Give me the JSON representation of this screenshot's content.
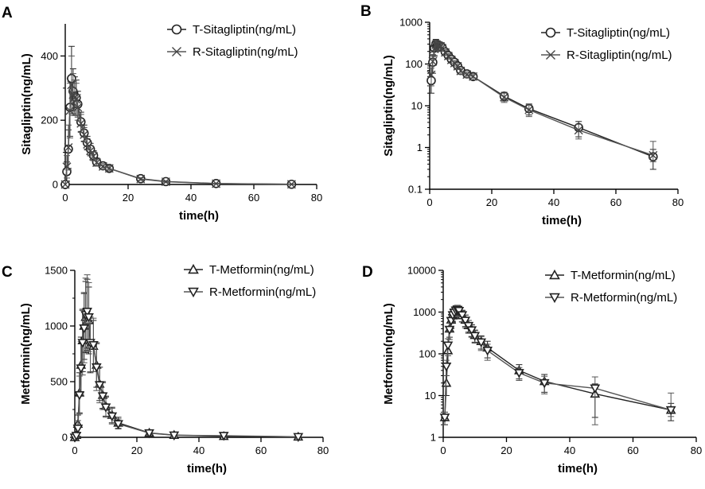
{
  "chart_data": [
    {
      "panel": "A",
      "type": "line",
      "scale": "linear",
      "xlabel": "time(h)",
      "ylabel": "Sitagliptin(ng/mL)",
      "xlim": [
        0,
        80
      ],
      "ylim": [
        0,
        500
      ],
      "xticks": [
        0,
        20,
        40,
        60,
        80
      ],
      "yticks": [
        0,
        200,
        400
      ],
      "ytick_labels": [
        "0",
        "200",
        "400"
      ],
      "legend_position": "top-right",
      "series": [
        {
          "name": "T-Sitagliptin(ng/mL)",
          "marker": "circle",
          "x": [
            0,
            0.5,
            1,
            1.5,
            2,
            2.5,
            3,
            3.5,
            4,
            5,
            6,
            7,
            8,
            9,
            10,
            12,
            14,
            24,
            32,
            48,
            72
          ],
          "y": [
            0,
            40,
            110,
            240,
            330,
            290,
            275,
            270,
            250,
            195,
            160,
            130,
            110,
            90,
            70,
            58,
            50,
            18,
            9,
            3,
            0.6
          ],
          "err": [
            0,
            30,
            60,
            90,
            100,
            70,
            60,
            55,
            40,
            30,
            25,
            20,
            18,
            15,
            12,
            10,
            8,
            4,
            3,
            1,
            0.5
          ]
        },
        {
          "name": "R-Sitagliptin(ng/mL)",
          "marker": "x",
          "x": [
            0,
            0.5,
            1,
            1.5,
            2,
            2.5,
            3,
            3.5,
            4,
            5,
            6,
            7,
            8,
            9,
            10,
            12,
            14,
            24,
            32,
            48,
            72
          ],
          "y": [
            0,
            55,
            115,
            230,
            310,
            280,
            270,
            265,
            240,
            190,
            155,
            125,
            105,
            88,
            68,
            56,
            50,
            17,
            8.5,
            2.6,
            0.65
          ],
          "err": [
            0,
            35,
            70,
            85,
            90,
            65,
            55,
            50,
            40,
            28,
            22,
            18,
            16,
            14,
            11,
            9,
            8,
            4,
            3,
            1,
            0.8
          ]
        }
      ]
    },
    {
      "panel": "B",
      "type": "line",
      "scale": "log",
      "xlabel": "time(h)",
      "ylabel": "Sitagliptin(ng/mL)",
      "xlim": [
        0,
        80
      ],
      "ylim": [
        0.1,
        1000
      ],
      "xticks": [
        0,
        20,
        40,
        60,
        80
      ],
      "yticks": [
        0.1,
        1,
        10,
        100,
        1000
      ],
      "ytick_labels": [
        "0.1",
        "1",
        "10",
        "100",
        "1000"
      ],
      "legend_position": "top-right",
      "series": [
        {
          "name": "T-Sitagliptin(ng/mL)",
          "marker": "circle",
          "x": [
            0.5,
            1,
            1.5,
            2,
            2.5,
            3,
            3.5,
            4,
            5,
            6,
            7,
            8,
            9,
            10,
            12,
            14,
            24,
            32,
            48,
            72
          ],
          "y": [
            40,
            110,
            240,
            300,
            290,
            275,
            270,
            250,
            195,
            160,
            130,
            110,
            90,
            70,
            58,
            50,
            17,
            8.5,
            3,
            0.6
          ],
          "err": [
            20,
            50,
            80,
            90,
            70,
            60,
            55,
            45,
            35,
            28,
            22,
            18,
            15,
            12,
            10,
            8,
            4,
            2.5,
            1.2,
            0.3
          ]
        },
        {
          "name": "R-Sitagliptin(ng/mL)",
          "marker": "x",
          "x": [
            0.5,
            1,
            1.5,
            2,
            2.5,
            3,
            3.5,
            4,
            5,
            6,
            7,
            8,
            9,
            10,
            12,
            14,
            24,
            32,
            48,
            72
          ],
          "y": [
            55,
            115,
            230,
            290,
            280,
            270,
            265,
            240,
            190,
            155,
            125,
            105,
            88,
            68,
            56,
            50,
            16,
            8,
            2.6,
            0.65
          ],
          "err": [
            25,
            55,
            80,
            85,
            65,
            55,
            50,
            40,
            30,
            24,
            20,
            16,
            14,
            11,
            9,
            8,
            4,
            2.5,
            1,
            0.75
          ]
        }
      ]
    },
    {
      "panel": "C",
      "type": "line",
      "scale": "linear",
      "xlabel": "time(h)",
      "ylabel": "Metformin(ng/mL)",
      "xlim": [
        0,
        80
      ],
      "ylim": [
        0,
        1500
      ],
      "xticks": [
        0,
        20,
        40,
        60,
        80
      ],
      "yticks": [
        0,
        500,
        1000,
        1500
      ],
      "ytick_labels": [
        "0",
        "500",
        "1000",
        "1500"
      ],
      "legend_position": "top-right",
      "series": [
        {
          "name": "T-Metformin(ng/mL)",
          "marker": "triangle-up",
          "x": [
            0,
            0.5,
            1,
            1.5,
            2,
            2.5,
            3,
            3.5,
            4,
            4.5,
            5,
            6,
            7,
            8,
            9,
            10,
            12,
            14,
            24,
            32,
            48,
            72
          ],
          "y": [
            0,
            20,
            120,
            400,
            650,
            870,
            1000,
            1080,
            1100,
            1050,
            830,
            820,
            650,
            480,
            380,
            280,
            200,
            130,
            40,
            20,
            10,
            4.5
          ],
          "err": [
            0,
            15,
            80,
            180,
            250,
            280,
            300,
            320,
            320,
            300,
            250,
            230,
            200,
            150,
            120,
            90,
            70,
            50,
            15,
            10,
            5,
            3
          ]
        },
        {
          "name": "R-Metformin(ng/mL)",
          "marker": "triangle-down",
          "x": [
            0,
            0.5,
            1,
            1.5,
            2,
            2.5,
            3,
            3.5,
            4,
            4.5,
            5,
            6,
            7,
            8,
            9,
            10,
            12,
            14,
            24,
            32,
            48,
            72
          ],
          "y": [
            0,
            15,
            80,
            380,
            620,
            850,
            980,
            1100,
            1130,
            1080,
            850,
            830,
            630,
            470,
            370,
            270,
            190,
            120,
            38,
            18,
            15,
            4.5
          ],
          "err": [
            0,
            12,
            70,
            170,
            240,
            290,
            310,
            330,
            330,
            310,
            260,
            240,
            210,
            160,
            120,
            90,
            70,
            45,
            15,
            10,
            10,
            7
          ]
        }
      ]
    },
    {
      "panel": "D",
      "type": "line",
      "scale": "log",
      "xlabel": "time(h)",
      "ylabel": "Metformin(ng/mL)",
      "xlim": [
        0,
        80
      ],
      "ylim": [
        1,
        10000
      ],
      "xticks": [
        0,
        20,
        40,
        60,
        80
      ],
      "yticks": [
        1,
        10,
        100,
        1000,
        10000
      ],
      "ytick_labels": [
        "1",
        "10",
        "100",
        "1000",
        "10000"
      ],
      "legend_position": "top-right",
      "series": [
        {
          "name": "T-Metformin(ng/mL)",
          "marker": "triangle-up",
          "x": [
            0.5,
            1,
            1.5,
            2,
            2.5,
            3,
            3.5,
            4,
            4.5,
            5,
            6,
            7,
            8,
            9,
            10,
            12,
            14,
            24,
            32,
            48,
            72
          ],
          "y": [
            3,
            20,
            120,
            400,
            650,
            870,
            1000,
            1080,
            1100,
            1050,
            830,
            650,
            480,
            380,
            280,
            200,
            140,
            40,
            22,
            11,
            4.5
          ],
          "err": [
            1,
            10,
            60,
            150,
            230,
            270,
            300,
            320,
            320,
            300,
            250,
            200,
            150,
            120,
            90,
            70,
            60,
            15,
            10,
            8,
            2
          ]
        },
        {
          "name": "R-Metformin(ng/mL)",
          "marker": "triangle-down",
          "x": [
            0.5,
            1,
            1.5,
            2,
            2.5,
            3,
            3.5,
            4,
            4.5,
            5,
            6,
            7,
            8,
            9,
            10,
            12,
            14,
            24,
            32,
            48,
            72
          ],
          "y": [
            3,
            50,
            160,
            380,
            620,
            850,
            980,
            1100,
            1130,
            1080,
            850,
            630,
            470,
            370,
            270,
            190,
            120,
            35,
            20,
            15,
            4.5
          ],
          "err": [
            1,
            20,
            70,
            160,
            220,
            280,
            310,
            330,
            330,
            310,
            260,
            210,
            160,
            120,
            90,
            70,
            50,
            12,
            9,
            13,
            7
          ]
        }
      ]
    }
  ]
}
